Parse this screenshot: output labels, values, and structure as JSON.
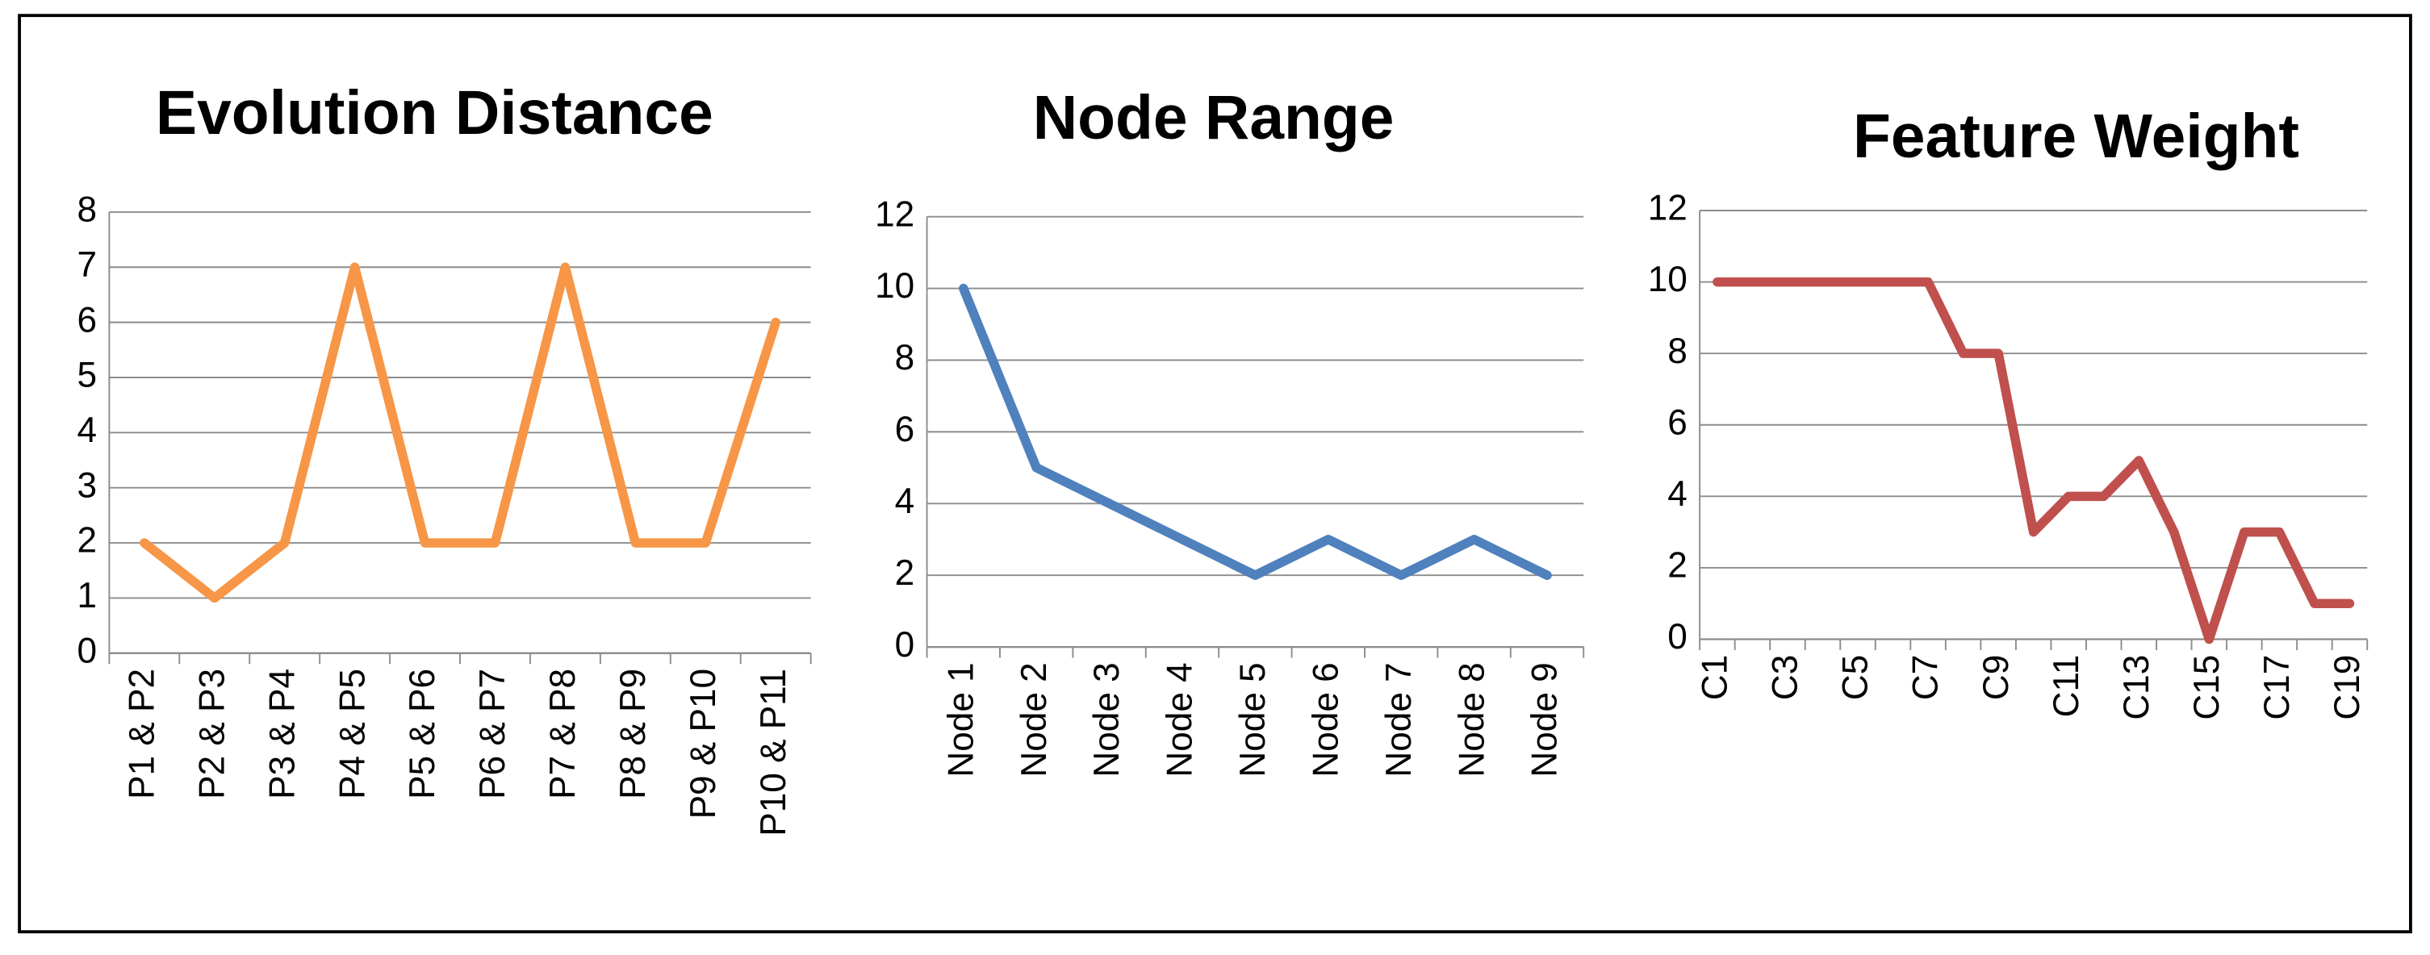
{
  "chart_data": [
    {
      "type": "line",
      "title": "Evolution Distance",
      "categories": [
        "P1 & P2",
        "P2 & P3",
        "P3 & P4",
        "P4 & P5",
        "P5 & P6",
        "P6 & P7",
        "P7 & P8",
        "P8 & P9",
        "P9 & P10",
        "P10 & P11"
      ],
      "values": [
        2,
        1,
        2,
        7,
        2,
        2,
        7,
        2,
        2,
        6
      ],
      "color": "#f79646",
      "ylim": [
        0,
        8
      ],
      "yticks": [
        0,
        1,
        2,
        3,
        4,
        5,
        6,
        7,
        8
      ],
      "grid": true
    },
    {
      "type": "line",
      "title": "Node Range",
      "categories": [
        "Node 1",
        "Node 2",
        "Node 3",
        "Node 4",
        "Node 5",
        "Node 6",
        "Node 7",
        "Node 8",
        "Node 9"
      ],
      "values": [
        10,
        5,
        4,
        3,
        2,
        3,
        2,
        3,
        2
      ],
      "color": "#4f81bd",
      "ylim": [
        0,
        12
      ],
      "yticks": [
        0,
        2,
        4,
        6,
        8,
        10,
        12
      ],
      "grid": true
    },
    {
      "type": "line",
      "title": "Feature Weight",
      "categories": [
        "C1",
        null,
        "C3",
        null,
        "C5",
        null,
        "C7",
        null,
        "C9",
        null,
        "C11",
        null,
        "C13",
        null,
        "C15",
        null,
        "C17",
        null,
        "C19"
      ],
      "values": [
        10,
        10,
        10,
        10,
        10,
        10,
        10,
        8,
        8,
        3,
        4,
        4,
        5,
        3,
        0,
        3,
        3,
        1,
        1
      ],
      "color": "#c0504d",
      "ylim": [
        0,
        12
      ],
      "yticks": [
        0,
        2,
        4,
        6,
        8,
        10,
        12
      ],
      "grid": true
    }
  ]
}
